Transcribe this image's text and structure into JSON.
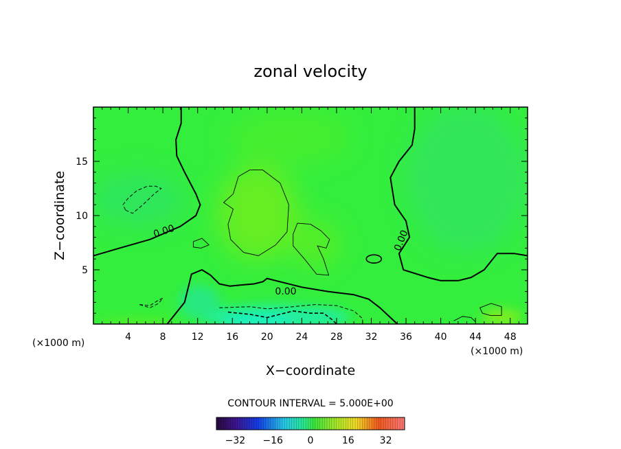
{
  "chart_data": {
    "type": "heatmap",
    "title": "zonal velocity",
    "xlabel": "X−coordinate",
    "ylabel": "Z−coordinate",
    "x_unit_label": "(×1000 m)",
    "y_unit_label": "(×1000 m)",
    "x_range": [
      0,
      50
    ],
    "y_range": [
      0,
      20
    ],
    "x_ticks": [
      4,
      8,
      12,
      16,
      20,
      24,
      28,
      32,
      36,
      40,
      44,
      48
    ],
    "x_tick_labels": [
      "4",
      "8",
      "12",
      "16",
      "20",
      "24",
      "28",
      "32",
      "36",
      "40",
      "44",
      "48"
    ],
    "y_ticks": [
      5,
      10,
      15
    ],
    "y_tick_labels": [
      "5",
      "10",
      "15"
    ],
    "contour_interval_text": "CONTOUR INTERVAL = 5.000E+00",
    "contour_labels": [
      "0.00",
      "0.00",
      "0.00"
    ],
    "colorbar": {
      "range": [
        -40,
        40
      ],
      "ticks": [
        -32,
        -16,
        0,
        16,
        32
      ],
      "tick_labels": [
        "−32",
        "−16",
        "0",
        "16",
        "32"
      ]
    },
    "zero_contours": [
      {
        "name": "left",
        "points": [
          [
            10.1,
            20
          ],
          [
            10.1,
            18.5
          ],
          [
            9.5,
            17
          ],
          [
            9.6,
            15.5
          ],
          [
            10.5,
            14
          ],
          [
            11.8,
            12
          ],
          [
            12.3,
            11
          ],
          [
            11.8,
            10
          ],
          [
            10,
            9
          ],
          [
            6.5,
            7.8
          ],
          [
            3,
            7
          ],
          [
            0,
            6.3
          ]
        ]
      },
      {
        "name": "right",
        "points": [
          [
            37,
            20
          ],
          [
            37,
            18
          ],
          [
            36.7,
            16.5
          ],
          [
            35.2,
            15
          ],
          [
            34.2,
            13.5
          ],
          [
            34.7,
            11
          ],
          [
            36,
            9.5
          ],
          [
            36.4,
            8
          ],
          [
            35.2,
            6.5
          ],
          [
            35.7,
            5
          ],
          [
            38.5,
            4.3
          ],
          [
            40,
            4
          ],
          [
            42,
            4
          ],
          [
            43.5,
            4.3
          ],
          [
            45,
            5
          ],
          [
            46.5,
            6.5
          ],
          [
            48.5,
            6.5
          ],
          [
            50,
            6.3
          ]
        ]
      },
      {
        "name": "bottom",
        "points": [
          [
            8.5,
            0
          ],
          [
            10.5,
            2
          ],
          [
            11.3,
            4.6
          ],
          [
            12.5,
            5
          ],
          [
            13.5,
            4.5
          ],
          [
            14.5,
            3.7
          ],
          [
            15.7,
            3.5
          ],
          [
            17,
            3.6
          ],
          [
            18.5,
            3.7
          ],
          [
            19.5,
            3.9
          ],
          [
            20,
            4.2
          ],
          [
            21,
            4
          ],
          [
            24,
            3.4
          ],
          [
            27,
            3.0
          ],
          [
            30,
            2.7
          ],
          [
            31.7,
            2.3
          ],
          [
            33,
            1.5
          ],
          [
            34.2,
            0.6
          ],
          [
            35,
            0
          ]
        ]
      }
    ],
    "positive_contours": [
      {
        "points": [
          [
            16.7,
            13.6
          ],
          [
            18,
            14.2
          ],
          [
            19.5,
            14.2
          ],
          [
            21.5,
            13
          ],
          [
            22.5,
            11
          ],
          [
            22.3,
            8.5
          ],
          [
            21,
            7.3
          ],
          [
            19,
            6.3
          ],
          [
            17.3,
            6.6
          ],
          [
            15.8,
            7.8
          ],
          [
            15.5,
            9.2
          ],
          [
            16.1,
            10.6
          ],
          [
            15,
            11.2
          ],
          [
            16.1,
            12
          ],
          [
            16.7,
            13.6
          ]
        ]
      },
      {
        "points": [
          [
            23.5,
            9.3
          ],
          [
            25,
            9.2
          ],
          [
            26.2,
            8.6
          ],
          [
            27.2,
            7.8
          ],
          [
            26.8,
            7
          ],
          [
            25.8,
            7.2
          ],
          [
            26.5,
            6
          ],
          [
            27.1,
            4.5
          ],
          [
            25.7,
            4.6
          ],
          [
            24.3,
            6
          ],
          [
            23,
            7.2
          ],
          [
            23,
            8.3
          ],
          [
            23.5,
            9.3
          ]
        ]
      },
      {
        "points": [
          [
            11.5,
            7.6
          ],
          [
            12.5,
            7.9
          ],
          [
            13.3,
            7.3
          ],
          [
            12.4,
            7
          ],
          [
            11.5,
            7.1
          ],
          [
            11.5,
            7.6
          ]
        ]
      },
      {
        "points": [
          [
            44.5,
            1.5
          ],
          [
            45.8,
            1.9
          ],
          [
            47,
            1.6
          ],
          [
            47,
            0.8
          ],
          [
            45.7,
            0.8
          ],
          [
            44.8,
            1
          ],
          [
            44.5,
            1.5
          ]
        ]
      },
      {
        "points": [
          [
            41.5,
            0.3
          ],
          [
            42.5,
            0.7
          ],
          [
            43.5,
            0.6
          ],
          [
            44,
            0.2
          ]
        ]
      }
    ],
    "negative_contours": [
      {
        "points": [
          [
            3.7,
            10.5
          ],
          [
            4.5,
            10.2
          ],
          [
            5.7,
            11
          ],
          [
            7,
            12
          ],
          [
            7.8,
            12.5
          ],
          [
            7.2,
            12.7
          ],
          [
            6.2,
            12.7
          ],
          [
            5,
            12.3
          ],
          [
            4,
            11.6
          ],
          [
            3.4,
            11
          ],
          [
            3.7,
            10.5
          ]
        ]
      },
      {
        "points": [
          [
            14.5,
            1.5
          ],
          [
            18,
            1.6
          ],
          [
            20,
            1.4
          ],
          [
            23,
            1.6
          ],
          [
            25.5,
            1.8
          ],
          [
            28,
            1.7
          ],
          [
            30,
            1.2
          ],
          [
            31,
            0.5
          ],
          [
            31,
            0
          ]
        ]
      },
      {
        "points": [
          [
            15.5,
            1.1
          ],
          [
            18,
            0.9
          ],
          [
            20,
            0.6
          ],
          [
            23,
            1.2
          ],
          [
            25,
            1.0
          ],
          [
            26.5,
            1.0
          ],
          [
            27.5,
            0.4
          ],
          [
            28,
            0
          ]
        ]
      },
      {
        "points": [
          [
            5.3,
            1.8
          ],
          [
            6.5,
            1.7
          ],
          [
            7.5,
            2.2
          ],
          [
            8,
            2.4
          ],
          [
            7.5,
            1.9
          ],
          [
            6.5,
            1.5
          ],
          [
            5.3,
            1.8
          ]
        ]
      }
    ],
    "colors": {
      "background_field": "#33ee3d",
      "line": "#000000"
    }
  }
}
